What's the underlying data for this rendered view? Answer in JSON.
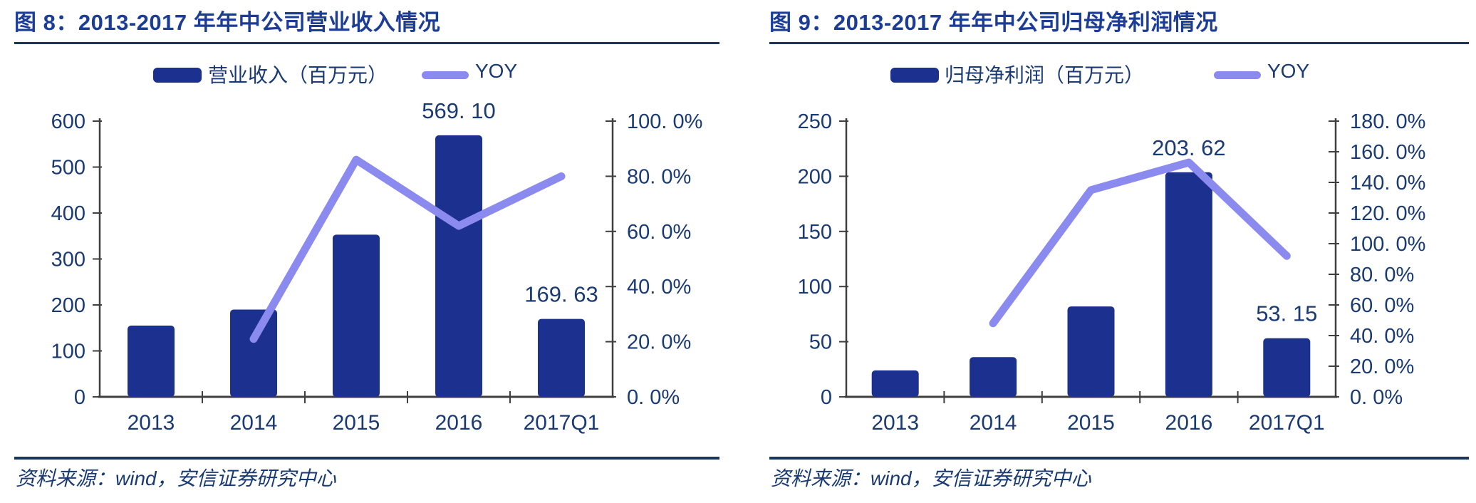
{
  "source_note": "资料来源：wind，安信证券研究中心",
  "colors": {
    "bar": "#1B308F",
    "line": "#8A8AEF",
    "title": "#1C3D96",
    "text": "#1A3A74",
    "axis_line": "#3F3F3F",
    "rule": "#17375E"
  },
  "chart_data": [
    {
      "type": "bar",
      "title": "图 8：2013-2017 年年中公司营业收入情况",
      "categories": [
        "2013",
        "2014",
        "2015",
        "2016",
        "2017Q1"
      ],
      "series": [
        {
          "name": "营业收入（百万元）",
          "type": "bar",
          "axis": "left",
          "values": [
            155,
            190,
            353,
            569.1,
            169.63
          ]
        },
        {
          "name": "YOY",
          "type": "line",
          "axis": "right",
          "unit": "%",
          "values": [
            null,
            21,
            86,
            62,
            80
          ]
        }
      ],
      "bar_labels": [
        null,
        null,
        null,
        "569. 10",
        "169. 63"
      ],
      "left_axis": {
        "min": 0,
        "max": 600,
        "tick_labels": [
          "600",
          "500",
          "400",
          "300",
          "200",
          "100",
          "0"
        ]
      },
      "right_axis": {
        "min": 0,
        "max": 100,
        "tick_labels": [
          "100. 0%",
          "80. 0%",
          "60. 0%",
          "40. 0%",
          "20. 0%",
          "0. 0%"
        ]
      },
      "legend": [
        {
          "label": "营业收入（百万元）",
          "swatch": "bar"
        },
        {
          "label": "YOY",
          "swatch": "line"
        }
      ],
      "grid": false,
      "legend_position": "top"
    },
    {
      "type": "bar",
      "title": "图 9：2013-2017 年年中公司归母净利润情况",
      "categories": [
        "2013",
        "2014",
        "2015",
        "2016",
        "2017Q1"
      ],
      "series": [
        {
          "name": "归母净利润（百万元）",
          "type": "bar",
          "axis": "left",
          "values": [
            24,
            36,
            82,
            203.62,
            53.15
          ]
        },
        {
          "name": "YOY",
          "type": "line",
          "axis": "right",
          "unit": "%",
          "values": [
            null,
            48,
            135,
            153,
            92
          ]
        }
      ],
      "bar_labels": [
        null,
        null,
        null,
        "203. 62",
        "53. 15"
      ],
      "left_axis": {
        "min": 0,
        "max": 250,
        "tick_labels": [
          "250",
          "200",
          "150",
          "100",
          "50",
          "0"
        ]
      },
      "right_axis": {
        "min": 0,
        "max": 180,
        "tick_labels": [
          "180. 0%",
          "160. 0%",
          "140. 0%",
          "120. 0%",
          "100. 0%",
          "80. 0%",
          "60. 0%",
          "40. 0%",
          "20. 0%",
          "0. 0%"
        ]
      },
      "legend": [
        {
          "label": "归母净利润（百万元）",
          "swatch": "bar"
        },
        {
          "label": "YOY",
          "swatch": "line"
        }
      ],
      "grid": false,
      "legend_position": "top"
    }
  ]
}
